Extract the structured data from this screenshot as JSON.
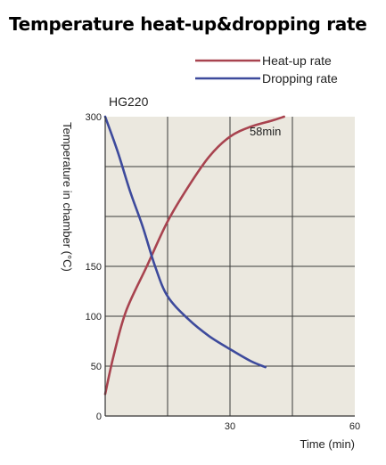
{
  "title": "Temperature heat-up&dropping rate",
  "colors": {
    "heat_up": "#a8434f",
    "dropping": "#3d4a9c",
    "plot_bg": "#ebe8df",
    "grid": "#3a3a3a"
  },
  "chart_data": {
    "type": "line",
    "subtitle": "HG220",
    "xlabel": "Time (min)",
    "ylabel": "Temperature in chamber (°C)",
    "xlim": [
      0,
      60
    ],
    "ylim": [
      0,
      300
    ],
    "xticks": [
      30,
      60
    ],
    "yticks": [
      0,
      50,
      100,
      150,
      300
    ],
    "grid": true,
    "legend_position": "top-right",
    "series": [
      {
        "name": "Heat-up rate",
        "color_key": "heat_up",
        "x": [
          0,
          2,
          5,
          10,
          15,
          20,
          25,
          30,
          35,
          40,
          43
        ],
        "y": [
          22,
          60,
          105,
          150,
          195,
          230,
          260,
          280,
          290,
          296,
          300
        ]
      },
      {
        "name": "Dropping rate",
        "color_key": "dropping",
        "x": [
          0,
          3,
          6,
          9,
          12,
          15,
          20,
          25,
          30,
          35,
          38.5
        ],
        "y": [
          300,
          265,
          225,
          190,
          150,
          120,
          97,
          80,
          67,
          55,
          49
        ]
      }
    ],
    "annotations": [
      {
        "text": "58min",
        "x": 38.5,
        "y": 285
      }
    ]
  }
}
